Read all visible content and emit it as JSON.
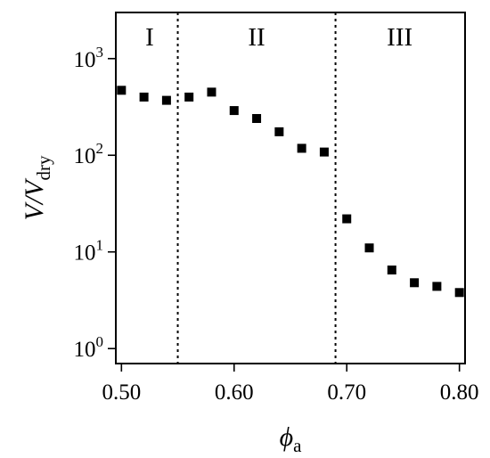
{
  "chart_data": {
    "type": "scatter",
    "xlabel": "ϕa",
    "ylabel": "V/Vdry",
    "xlabel_parts": {
      "base": "ϕ",
      "sub": "a"
    },
    "ylabel_parts": {
      "base": "V/V",
      "sub": "dry"
    },
    "xlim": [
      0.495,
      0.805
    ],
    "ylim": [
      0.7,
      3000
    ],
    "yscale": "log",
    "grid": false,
    "x_ticks": [
      {
        "value": 0.5,
        "label": "0.50"
      },
      {
        "value": 0.6,
        "label": "0.60"
      },
      {
        "value": 0.7,
        "label": "0.70"
      },
      {
        "value": 0.8,
        "label": "0.80"
      }
    ],
    "y_ticks": [
      {
        "value": 1,
        "base": "10",
        "exp": "0"
      },
      {
        "value": 10,
        "base": "10",
        "exp": "1"
      },
      {
        "value": 100,
        "base": "10",
        "exp": "2"
      },
      {
        "value": 1000,
        "base": "10",
        "exp": "3"
      }
    ],
    "regions": [
      {
        "label": "I",
        "x_center": 0.525
      },
      {
        "label": "II",
        "x_center": 0.62
      },
      {
        "label": "III",
        "x_center": 0.747
      }
    ],
    "dividers": [
      0.55,
      0.69
    ],
    "marker_color": "#000000",
    "series": [
      {
        "x": [
          0.5,
          0.52,
          0.54,
          0.56,
          0.58,
          0.6,
          0.62,
          0.64,
          0.66,
          0.68,
          0.7,
          0.72,
          0.74,
          0.76,
          0.78,
          0.8
        ],
        "y": [
          470,
          400,
          370,
          400,
          450,
          290,
          240,
          175,
          118,
          108,
          22,
          11,
          6.5,
          4.8,
          4.4,
          3.8
        ]
      }
    ]
  }
}
